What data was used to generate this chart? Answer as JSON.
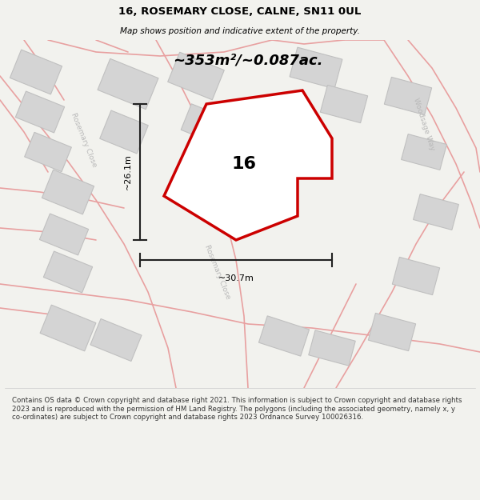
{
  "title_line1": "16, ROSEMARY CLOSE, CALNE, SN11 0UL",
  "title_line2": "Map shows position and indicative extent of the property.",
  "area_text": "~353m²/~0.087ac.",
  "label_16": "16",
  "dim_vertical": "~26.1m",
  "dim_horizontal": "~30.7m",
  "footer_text": "Contains OS data © Crown copyright and database right 2021. This information is subject to Crown copyright and database rights 2023 and is reproduced with the permission of HM Land Registry. The polygons (including the associated geometry, namely x, y co-ordinates) are subject to Crown copyright and database rights 2023 Ordnance Survey 100026316.",
  "bg_color": "#f2f2ee",
  "map_bg": "#f2f2ee",
  "road_color": "#e8a0a0",
  "building_color": "#d4d4d4",
  "building_edge": "#c0c0c0",
  "property_color": "#cc0000",
  "property_fill": "#ffffff",
  "dim_color": "#222222",
  "street_label_color": "#b8b8b8",
  "title_color": "#000000",
  "footer_color": "#333333",
  "footer_bg": "#ffffff",
  "title_fontsize": 9.5,
  "subtitle_fontsize": 7.5,
  "area_fontsize": 13,
  "label_fontsize": 16,
  "dim_fontsize": 8,
  "street_fontsize": 6.5,
  "footer_fontsize": 6.2
}
